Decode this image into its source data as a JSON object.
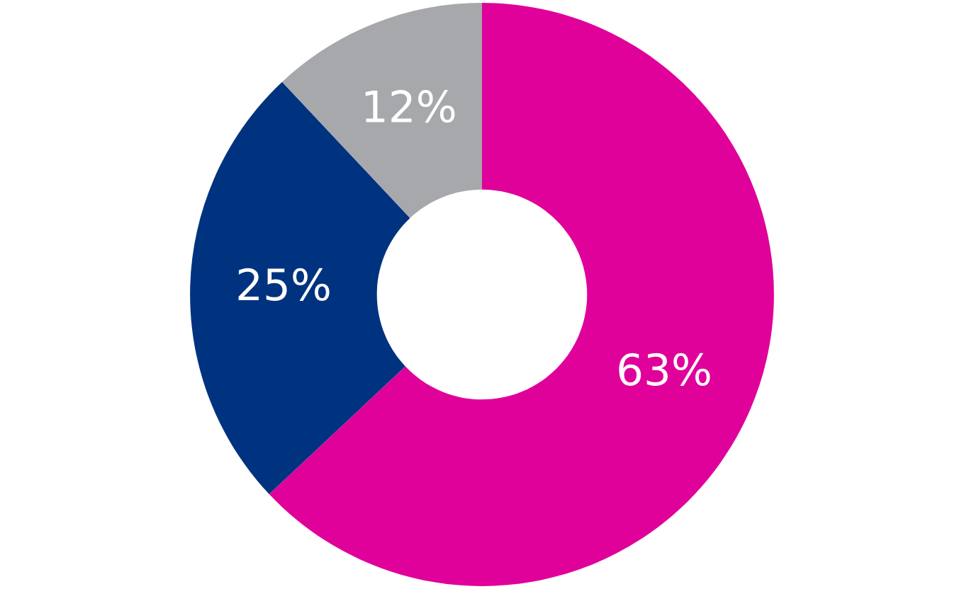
{
  "chart_data": {
    "type": "donut",
    "categories": [
      null,
      null,
      null
    ],
    "values": [
      63,
      25,
      12
    ],
    "colors": [
      "#e0009a",
      "#00337f",
      "#a7a8ab"
    ],
    "value_labels": [
      "63%",
      "25%",
      "12%"
    ]
  }
}
